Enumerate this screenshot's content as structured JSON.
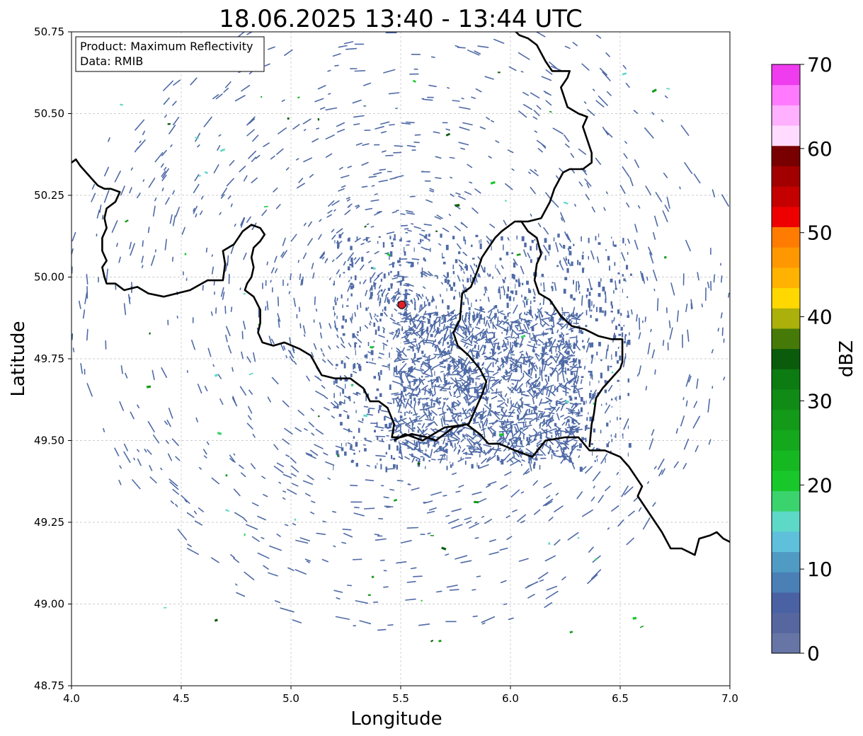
{
  "title": "18.06.2025 13:40 - 13:44 UTC",
  "annotation": {
    "product_line": "Product: Maximum Reflectivity",
    "data_line": "Data: RMIB"
  },
  "map": {
    "x_label": "Longitude",
    "y_label": "Latitude",
    "lon_range": [
      4.0,
      7.0
    ],
    "lat_range": [
      48.75,
      50.75
    ],
    "x_ticks": [
      "4.0",
      "4.5",
      "5.0",
      "5.5",
      "6.0",
      "6.5",
      "7.0"
    ],
    "y_ticks": [
      "48.75",
      "49.00",
      "49.25",
      "49.50",
      "49.75",
      "50.00",
      "50.25",
      "50.50",
      "50.75"
    ],
    "grid": true,
    "radar_site": {
      "lon": 5.505,
      "lat": 49.915,
      "marker_color": "#e0202a"
    },
    "borders": [
      [
        [
          4.0,
          50.35
        ],
        [
          4.02,
          50.36
        ],
        [
          4.04,
          50.34
        ],
        [
          4.08,
          50.31
        ],
        [
          4.12,
          50.28
        ],
        [
          4.15,
          50.27
        ],
        [
          4.18,
          50.27
        ],
        [
          4.22,
          50.26
        ],
        [
          4.2,
          50.23
        ],
        [
          4.16,
          50.21
        ],
        [
          4.15,
          50.18
        ],
        [
          4.16,
          50.15
        ],
        [
          4.14,
          50.12
        ],
        [
          4.14,
          50.08
        ],
        [
          4.16,
          50.05
        ],
        [
          4.14,
          50.03
        ],
        [
          4.15,
          50.0
        ],
        [
          4.16,
          49.98
        ],
        [
          4.2,
          49.98
        ],
        [
          4.24,
          49.96
        ],
        [
          4.3,
          49.97
        ],
        [
          4.35,
          49.95
        ],
        [
          4.42,
          49.94
        ],
        [
          4.48,
          49.95
        ],
        [
          4.54,
          49.96
        ],
        [
          4.62,
          49.99
        ],
        [
          4.69,
          49.99
        ],
        [
          4.7,
          50.04
        ],
        [
          4.69,
          50.08
        ],
        [
          4.74,
          50.1
        ],
        [
          4.78,
          50.14
        ],
        [
          4.82,
          50.16
        ],
        [
          4.86,
          50.15
        ],
        [
          4.88,
          50.13
        ],
        [
          4.86,
          50.11
        ],
        [
          4.83,
          50.09
        ],
        [
          4.82,
          50.06
        ],
        [
          4.83,
          50.03
        ],
        [
          4.82,
          50.0
        ],
        [
          4.8,
          49.98
        ],
        [
          4.79,
          49.96
        ],
        [
          4.83,
          49.94
        ],
        [
          4.86,
          49.9
        ],
        [
          4.86,
          49.86
        ],
        [
          4.85,
          49.83
        ],
        [
          4.87,
          49.8
        ],
        [
          4.92,
          49.79
        ],
        [
          4.97,
          49.8
        ],
        [
          5.04,
          49.78
        ],
        [
          5.09,
          49.76
        ],
        [
          5.14,
          49.7
        ],
        [
          5.2,
          49.69
        ],
        [
          5.27,
          49.69
        ],
        [
          5.33,
          49.66
        ],
        [
          5.36,
          49.62
        ],
        [
          5.4,
          49.62
        ],
        [
          5.44,
          49.6
        ],
        [
          5.47,
          49.55
        ],
        [
          5.46,
          49.51
        ],
        [
          5.5,
          49.51
        ],
        [
          5.55,
          49.52
        ],
        [
          5.62,
          49.51
        ],
        [
          5.66,
          49.5
        ],
        [
          5.74,
          49.54
        ],
        [
          5.8,
          49.55
        ],
        [
          5.86,
          49.52
        ],
        [
          5.9,
          49.49
        ],
        [
          5.95,
          49.49
        ],
        [
          6.02,
          49.47
        ],
        [
          6.1,
          49.45
        ],
        [
          6.16,
          49.5
        ],
        [
          6.25,
          49.51
        ],
        [
          6.31,
          49.51
        ],
        [
          6.36,
          49.47
        ],
        [
          6.43,
          49.47
        ],
        [
          6.5,
          49.45
        ],
        [
          6.54,
          49.42
        ],
        [
          6.57,
          49.39
        ],
        [
          6.6,
          49.36
        ],
        [
          6.58,
          49.33
        ],
        [
          6.62,
          49.29
        ],
        [
          6.66,
          49.25
        ],
        [
          6.69,
          49.22
        ],
        [
          6.73,
          49.17
        ],
        [
          6.78,
          49.17
        ],
        [
          6.84,
          49.15
        ],
        [
          6.86,
          49.2
        ],
        [
          6.91,
          49.21
        ],
        [
          6.94,
          49.22
        ],
        [
          6.97,
          49.2
        ],
        [
          7.0,
          49.19
        ]
      ],
      [
        [
          5.47,
          49.5
        ],
        [
          5.52,
          49.52
        ],
        [
          5.6,
          49.5
        ],
        [
          5.7,
          49.54
        ],
        [
          5.81,
          49.55
        ],
        [
          5.87,
          49.64
        ],
        [
          5.89,
          49.68
        ],
        [
          5.86,
          49.72
        ],
        [
          5.81,
          49.76
        ],
        [
          5.76,
          49.79
        ],
        [
          5.74,
          49.83
        ],
        [
          5.77,
          49.87
        ],
        [
          5.78,
          49.95
        ],
        [
          5.82,
          49.97
        ],
        [
          5.85,
          50.02
        ],
        [
          5.87,
          50.06
        ],
        [
          5.9,
          50.09
        ],
        [
          5.93,
          50.12
        ],
        [
          5.96,
          50.14
        ],
        [
          6.02,
          50.17
        ],
        [
          6.05,
          50.17
        ],
        [
          6.08,
          50.14
        ],
        [
          6.12,
          50.12
        ],
        [
          6.14,
          50.07
        ],
        [
          6.12,
          50.04
        ],
        [
          6.11,
          49.99
        ],
        [
          6.13,
          49.95
        ],
        [
          6.18,
          49.93
        ],
        [
          6.23,
          49.88
        ],
        [
          6.28,
          49.85
        ],
        [
          6.34,
          49.84
        ],
        [
          6.4,
          49.82
        ],
        [
          6.46,
          49.81
        ],
        [
          6.51,
          49.81
        ],
        [
          6.51,
          49.74
        ],
        [
          6.5,
          49.72
        ],
        [
          6.46,
          49.69
        ],
        [
          6.42,
          49.66
        ],
        [
          6.39,
          49.63
        ],
        [
          6.38,
          49.58
        ],
        [
          6.37,
          49.55
        ],
        [
          6.36,
          49.48
        ]
      ],
      [
        [
          6.03,
          50.17
        ],
        [
          6.08,
          50.17
        ],
        [
          6.14,
          50.18
        ],
        [
          6.18,
          50.23
        ],
        [
          6.2,
          50.27
        ],
        [
          6.24,
          50.32
        ],
        [
          6.27,
          50.33
        ],
        [
          6.33,
          50.33
        ],
        [
          6.37,
          50.35
        ],
        [
          6.37,
          50.38
        ],
        [
          6.35,
          50.42
        ],
        [
          6.33,
          50.46
        ],
        [
          6.35,
          50.49
        ],
        [
          6.31,
          50.5
        ],
        [
          6.26,
          50.52
        ],
        [
          6.23,
          50.58
        ],
        [
          6.26,
          50.61
        ],
        [
          6.27,
          50.63
        ],
        [
          6.19,
          50.63
        ],
        [
          6.16,
          50.66
        ],
        [
          6.12,
          50.71
        ],
        [
          6.08,
          50.73
        ],
        [
          6.04,
          50.74
        ],
        [
          6.01,
          50.76
        ]
      ]
    ],
    "color_scale": {
      "label": "dBZ",
      "min": 0,
      "max": 70,
      "ticks": [
        "0",
        "10",
        "20",
        "30",
        "40",
        "50",
        "60",
        "70"
      ],
      "colors": [
        "#6675a6",
        "#5667a0",
        "#4a62a4",
        "#4a80b5",
        "#4f9bc4",
        "#5ec0da",
        "#5ed9c8",
        "#3ad36e",
        "#18c82a",
        "#16b822",
        "#14a81c",
        "#129a18",
        "#108c16",
        "#0c7c12",
        "#0a5c0c",
        "#467a08",
        "#acb00a",
        "#ffd800",
        "#ffb200",
        "#ff9800",
        "#ff7c00",
        "#ee0000",
        "#c40000",
        "#a20000",
        "#780000",
        "#ffdcff",
        "#ffb0ff",
        "#ff7aff",
        "#ee3cee"
      ]
    },
    "echo_level_dbz": 3,
    "light_echo_color": "#4f6aa6"
  }
}
